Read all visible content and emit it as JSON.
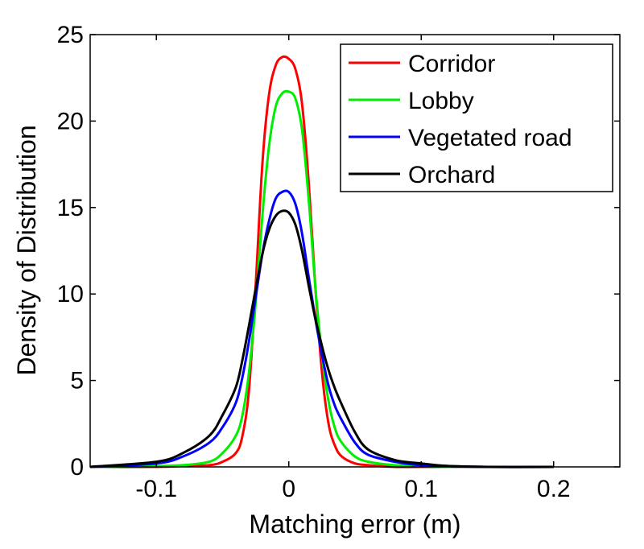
{
  "chart_data": {
    "type": "line",
    "title": "",
    "xlabel": "Matching error (m)",
    "ylabel": "Density of Distribution",
    "xlim": [
      -0.15,
      0.25
    ],
    "ylim": [
      0,
      25
    ],
    "x_ticks": [
      -0.1,
      0,
      0.1,
      0.2
    ],
    "x_tick_labels": [
      "-0.1",
      "0",
      "0.1",
      "0.2"
    ],
    "y_ticks": [
      0,
      5,
      10,
      15,
      20,
      25
    ],
    "y_tick_labels": [
      "0",
      "5",
      "10",
      "15",
      "20",
      "25"
    ],
    "grid": false,
    "legend_position": "top-right",
    "x": [
      -0.15,
      -0.1,
      -0.08,
      -0.06,
      -0.05,
      -0.04,
      -0.035,
      -0.03,
      -0.025,
      -0.02,
      -0.015,
      -0.01,
      -0.005,
      0,
      0.005,
      0.01,
      0.015,
      0.02,
      0.025,
      0.03,
      0.035,
      0.04,
      0.05,
      0.06,
      0.08,
      0.1,
      0.12,
      0.15,
      0.2
    ],
    "series": [
      {
        "name": "Corridor",
        "color": "#ff0000",
        "values": [
          0,
          0,
          0.05,
          0.1,
          0.3,
          0.8,
          1.8,
          4.5,
          10.5,
          17.5,
          21.5,
          23.2,
          23.7,
          23.6,
          23.0,
          21.0,
          16.5,
          10.5,
          5.5,
          2.5,
          1.2,
          0.6,
          0.2,
          0.1,
          0,
          0,
          0,
          0,
          0
        ]
      },
      {
        "name": "Lobby",
        "color": "#00ee00",
        "values": [
          0,
          0.05,
          0.1,
          0.3,
          0.8,
          1.8,
          3.0,
          5.5,
          9.5,
          14.5,
          18.5,
          20.8,
          21.6,
          21.7,
          21.3,
          19.5,
          15.5,
          10.5,
          6.5,
          3.8,
          2.2,
          1.4,
          0.6,
          0.3,
          0.1,
          0.05,
          0,
          0,
          0
        ]
      },
      {
        "name": "Vegetated road",
        "color": "#0000ff",
        "values": [
          0,
          0.2,
          0.6,
          1.4,
          2.3,
          3.7,
          5.2,
          7.3,
          9.8,
          12.3,
          14.2,
          15.5,
          15.9,
          15.9,
          15.2,
          13.5,
          11.0,
          8.6,
          6.5,
          4.7,
          3.5,
          2.7,
          1.4,
          0.7,
          0.3,
          0.1,
          0.05,
          0,
          0
        ]
      },
      {
        "name": "Orchard",
        "color": "#000000",
        "values": [
          0,
          0.3,
          0.8,
          1.8,
          3.0,
          4.6,
          6.2,
          8.2,
          10.3,
          12.3,
          13.7,
          14.5,
          14.8,
          14.7,
          14.0,
          12.5,
          10.5,
          8.6,
          7.0,
          5.6,
          4.5,
          3.6,
          2.0,
          1.0,
          0.4,
          0.2,
          0.05,
          0,
          0
        ]
      }
    ]
  }
}
